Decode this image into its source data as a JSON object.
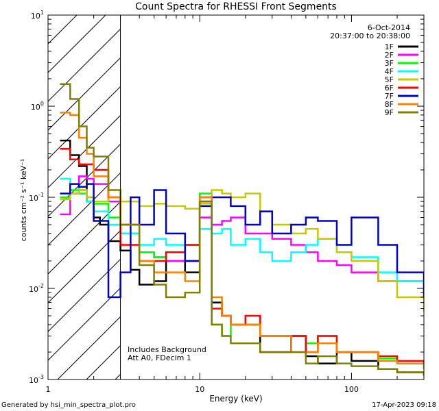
{
  "chart_data": {
    "type": "line",
    "title": "Count Spectra for RHESSI Front Segments",
    "xlabel": "Energy (keV)",
    "ylabel": "counts cm⁻² s⁻¹ keV⁻¹",
    "x_scale": "log",
    "y_scale": "log",
    "xlim": [
      1,
      300
    ],
    "ylim": [
      0.001,
      10
    ],
    "x_ticks": [
      {
        "v": 1,
        "label": "1"
      },
      {
        "v": 10,
        "label": "10"
      },
      {
        "v": 100,
        "label": "100"
      }
    ],
    "y_ticks": [
      {
        "v": 10,
        "mant": "10",
        "exp": "1"
      },
      {
        "v": 1,
        "mant": "10",
        "exp": "0"
      },
      {
        "v": 0.1,
        "mant": "10",
        "exp": "-1"
      },
      {
        "v": 0.01,
        "mant": "10",
        "exp": "-2"
      },
      {
        "v": 0.001,
        "mant": "10",
        "exp": "-3"
      }
    ],
    "excluded_region_max_kev": 3,
    "legend_position": "top-right",
    "date_label": "6-Oct-2014",
    "time_range": "20:37:00 to 20:38:00",
    "annotations": [
      "Includes Background",
      "Att A0, FDecim 1"
    ],
    "series": [
      {
        "name": "1F",
        "color": "#000000",
        "points": [
          [
            1.2,
            0.42
          ],
          [
            1.4,
            0.29
          ],
          [
            1.6,
            0.22
          ],
          [
            1.8,
            0.09
          ],
          [
            2.0,
            0.06
          ],
          [
            2.2,
            0.05
          ],
          [
            2.5,
            0.033
          ],
          [
            3.0,
            0.026
          ],
          [
            3.5,
            0.016
          ],
          [
            4.0,
            0.011
          ],
          [
            5.0,
            0.012
          ],
          [
            6.0,
            0.02
          ],
          [
            8.0,
            0.015
          ],
          [
            10,
            0.09
          ],
          [
            12,
            0.007
          ],
          [
            14,
            0.005
          ],
          [
            16,
            0.004
          ],
          [
            20,
            0.004
          ],
          [
            25,
            0.002
          ],
          [
            30,
            0.002
          ],
          [
            40,
            0.003
          ],
          [
            50,
            0.0018
          ],
          [
            60,
            0.0015
          ],
          [
            80,
            0.002
          ],
          [
            100,
            0.0016
          ],
          [
            150,
            0.0013
          ],
          [
            200,
            0.0012
          ],
          [
            300,
            0.0011
          ]
        ]
      },
      {
        "name": "2F",
        "color": "#ff00ff",
        "points": [
          [
            1.2,
            0.065
          ],
          [
            1.4,
            0.11
          ],
          [
            1.6,
            0.17
          ],
          [
            1.8,
            0.16
          ],
          [
            2.0,
            0.14
          ],
          [
            2.5,
            0.09
          ],
          [
            3.0,
            0.05
          ],
          [
            4.0,
            0.025
          ],
          [
            5.0,
            0.022
          ],
          [
            6.0,
            0.02
          ],
          [
            8.0,
            0.02
          ],
          [
            10,
            0.06
          ],
          [
            12,
            0.05
          ],
          [
            14,
            0.055
          ],
          [
            16,
            0.06
          ],
          [
            20,
            0.04
          ],
          [
            25,
            0.04
          ],
          [
            30,
            0.035
          ],
          [
            40,
            0.03
          ],
          [
            50,
            0.025
          ],
          [
            60,
            0.02
          ],
          [
            80,
            0.018
          ],
          [
            100,
            0.015
          ],
          [
            150,
            0.012
          ],
          [
            200,
            0.012
          ],
          [
            300,
            0.011
          ]
        ]
      },
      {
        "name": "3F",
        "color": "#00ff00",
        "points": [
          [
            1.2,
            0.1
          ],
          [
            1.4,
            0.12
          ],
          [
            1.6,
            0.11
          ],
          [
            1.8,
            0.1
          ],
          [
            2.0,
            0.085
          ],
          [
            2.5,
            0.06
          ],
          [
            3.0,
            0.04
          ],
          [
            4.0,
            0.025
          ],
          [
            5.0,
            0.022
          ],
          [
            6.0,
            0.025
          ],
          [
            8.0,
            0.03
          ],
          [
            10,
            0.11
          ],
          [
            12,
            0.004
          ],
          [
            14,
            0.003
          ],
          [
            16,
            0.004
          ],
          [
            20,
            0.004
          ],
          [
            25,
            0.003
          ],
          [
            30,
            0.003
          ],
          [
            40,
            0.003
          ],
          [
            50,
            0.0025
          ],
          [
            60,
            0.003
          ],
          [
            80,
            0.002
          ],
          [
            100,
            0.002
          ],
          [
            150,
            0.0017
          ],
          [
            200,
            0.0015
          ],
          [
            300,
            0.0013
          ]
        ]
      },
      {
        "name": "4F",
        "color": "#00ffff",
        "points": [
          [
            1.2,
            0.16
          ],
          [
            1.4,
            0.14
          ],
          [
            1.6,
            0.12
          ],
          [
            1.8,
            0.09
          ],
          [
            2.0,
            0.07
          ],
          [
            2.5,
            0.05
          ],
          [
            3.0,
            0.04
          ],
          [
            4.0,
            0.03
          ],
          [
            5.0,
            0.035
          ],
          [
            6.0,
            0.03
          ],
          [
            8.0,
            0.03
          ],
          [
            10,
            0.045
          ],
          [
            12,
            0.04
          ],
          [
            14,
            0.045
          ],
          [
            16,
            0.03
          ],
          [
            20,
            0.035
          ],
          [
            25,
            0.025
          ],
          [
            30,
            0.02
          ],
          [
            40,
            0.025
          ],
          [
            50,
            0.03
          ],
          [
            60,
            0.035
          ],
          [
            80,
            0.025
          ],
          [
            100,
            0.022
          ],
          [
            150,
            0.015
          ],
          [
            200,
            0.012
          ],
          [
            300,
            0.01
          ]
        ]
      },
      {
        "name": "5F",
        "color": "#c8c800",
        "points": [
          [
            1.2,
            0.095
          ],
          [
            1.4,
            0.11
          ],
          [
            1.6,
            0.12
          ],
          [
            1.8,
            0.1
          ],
          [
            2.0,
            0.09
          ],
          [
            2.5,
            0.1
          ],
          [
            3.0,
            0.09
          ],
          [
            4.0,
            0.08
          ],
          [
            5.0,
            0.085
          ],
          [
            6.0,
            0.08
          ],
          [
            8.0,
            0.075
          ],
          [
            10,
            0.085
          ],
          [
            12,
            0.12
          ],
          [
            14,
            0.11
          ],
          [
            16,
            0.1
          ],
          [
            20,
            0.11
          ],
          [
            25,
            0.07
          ],
          [
            30,
            0.05
          ],
          [
            40,
            0.04
          ],
          [
            50,
            0.045
          ],
          [
            60,
            0.035
          ],
          [
            80,
            0.025
          ],
          [
            100,
            0.02
          ],
          [
            150,
            0.012
          ],
          [
            200,
            0.008
          ],
          [
            300,
            0.0055
          ]
        ]
      },
      {
        "name": "6F",
        "color": "#ff0000",
        "points": [
          [
            1.2,
            0.34
          ],
          [
            1.4,
            0.26
          ],
          [
            1.6,
            0.23
          ],
          [
            1.8,
            0.23
          ],
          [
            2.0,
            0.2
          ],
          [
            2.5,
            0.1
          ],
          [
            3.0,
            0.03
          ],
          [
            4.0,
            0.02
          ],
          [
            5.0,
            0.02
          ],
          [
            6.0,
            0.025
          ],
          [
            8.0,
            0.03
          ],
          [
            10,
            0.1
          ],
          [
            12,
            0.006
          ],
          [
            14,
            0.005
          ],
          [
            16,
            0.004
          ],
          [
            20,
            0.005
          ],
          [
            25,
            0.003
          ],
          [
            30,
            0.003
          ],
          [
            40,
            0.003
          ],
          [
            50,
            0.002
          ],
          [
            60,
            0.003
          ],
          [
            80,
            0.002
          ],
          [
            100,
            0.002
          ],
          [
            150,
            0.0018
          ],
          [
            200,
            0.0016
          ],
          [
            300,
            0.0015
          ]
        ]
      },
      {
        "name": "7F",
        "color": "#0000cc",
        "points": [
          [
            1.2,
            0.11
          ],
          [
            1.4,
            0.14
          ],
          [
            1.6,
            0.13
          ],
          [
            1.8,
            0.14
          ],
          [
            2.0,
            0.055
          ],
          [
            2.5,
            0.008
          ],
          [
            3.0,
            0.015
          ],
          [
            3.5,
            0.1
          ],
          [
            4.0,
            0.05
          ],
          [
            5.0,
            0.12
          ],
          [
            6.0,
            0.04
          ],
          [
            8.0,
            0.02
          ],
          [
            10,
            0.08
          ],
          [
            12,
            0.1
          ],
          [
            14,
            0.1
          ],
          [
            16,
            0.08
          ],
          [
            20,
            0.05
          ],
          [
            25,
            0.07
          ],
          [
            30,
            0.04
          ],
          [
            40,
            0.05
          ],
          [
            50,
            0.06
          ],
          [
            60,
            0.055
          ],
          [
            80,
            0.03
          ],
          [
            100,
            0.06
          ],
          [
            150,
            0.03
          ],
          [
            200,
            0.015
          ],
          [
            300,
            0.008
          ]
        ]
      },
      {
        "name": "8F",
        "color": "#ff8000",
        "points": [
          [
            1.2,
            0.85
          ],
          [
            1.4,
            0.8
          ],
          [
            1.6,
            0.45
          ],
          [
            1.8,
            0.3
          ],
          [
            2.0,
            0.17
          ],
          [
            2.5,
            0.1
          ],
          [
            3.0,
            0.05
          ],
          [
            4.0,
            0.02
          ],
          [
            5.0,
            0.015
          ],
          [
            6.0,
            0.015
          ],
          [
            8.0,
            0.012
          ],
          [
            10,
            0.1
          ],
          [
            12,
            0.008
          ],
          [
            14,
            0.005
          ],
          [
            16,
            0.004
          ],
          [
            20,
            0.004
          ],
          [
            25,
            0.003
          ],
          [
            30,
            0.003
          ],
          [
            40,
            0.002
          ],
          [
            50,
            0.002
          ],
          [
            60,
            0.0025
          ],
          [
            80,
            0.002
          ],
          [
            100,
            0.002
          ],
          [
            150,
            0.0016
          ],
          [
            200,
            0.0015
          ],
          [
            300,
            0.0013
          ]
        ]
      },
      {
        "name": "9F",
        "color": "#808000",
        "points": [
          [
            1.2,
            1.75
          ],
          [
            1.4,
            1.2
          ],
          [
            1.6,
            0.6
          ],
          [
            1.8,
            0.35
          ],
          [
            2.0,
            0.28
          ],
          [
            2.5,
            0.12
          ],
          [
            3.0,
            0.05
          ],
          [
            4.0,
            0.018
          ],
          [
            5.0,
            0.011
          ],
          [
            6.0,
            0.008
          ],
          [
            8.0,
            0.009
          ],
          [
            10,
            0.09
          ],
          [
            12,
            0.004
          ],
          [
            14,
            0.003
          ],
          [
            16,
            0.0025
          ],
          [
            20,
            0.0025
          ],
          [
            25,
            0.002
          ],
          [
            30,
            0.002
          ],
          [
            40,
            0.002
          ],
          [
            50,
            0.0015
          ],
          [
            60,
            0.0018
          ],
          [
            80,
            0.0015
          ],
          [
            100,
            0.0014
          ],
          [
            150,
            0.0013
          ],
          [
            200,
            0.0012
          ],
          [
            300,
            0.0011
          ]
        ]
      }
    ]
  },
  "footer": {
    "generated_by": "Generated by hsi_min_spectra_plot.pro",
    "timestamp": "17-Apr-2023 09:18"
  }
}
